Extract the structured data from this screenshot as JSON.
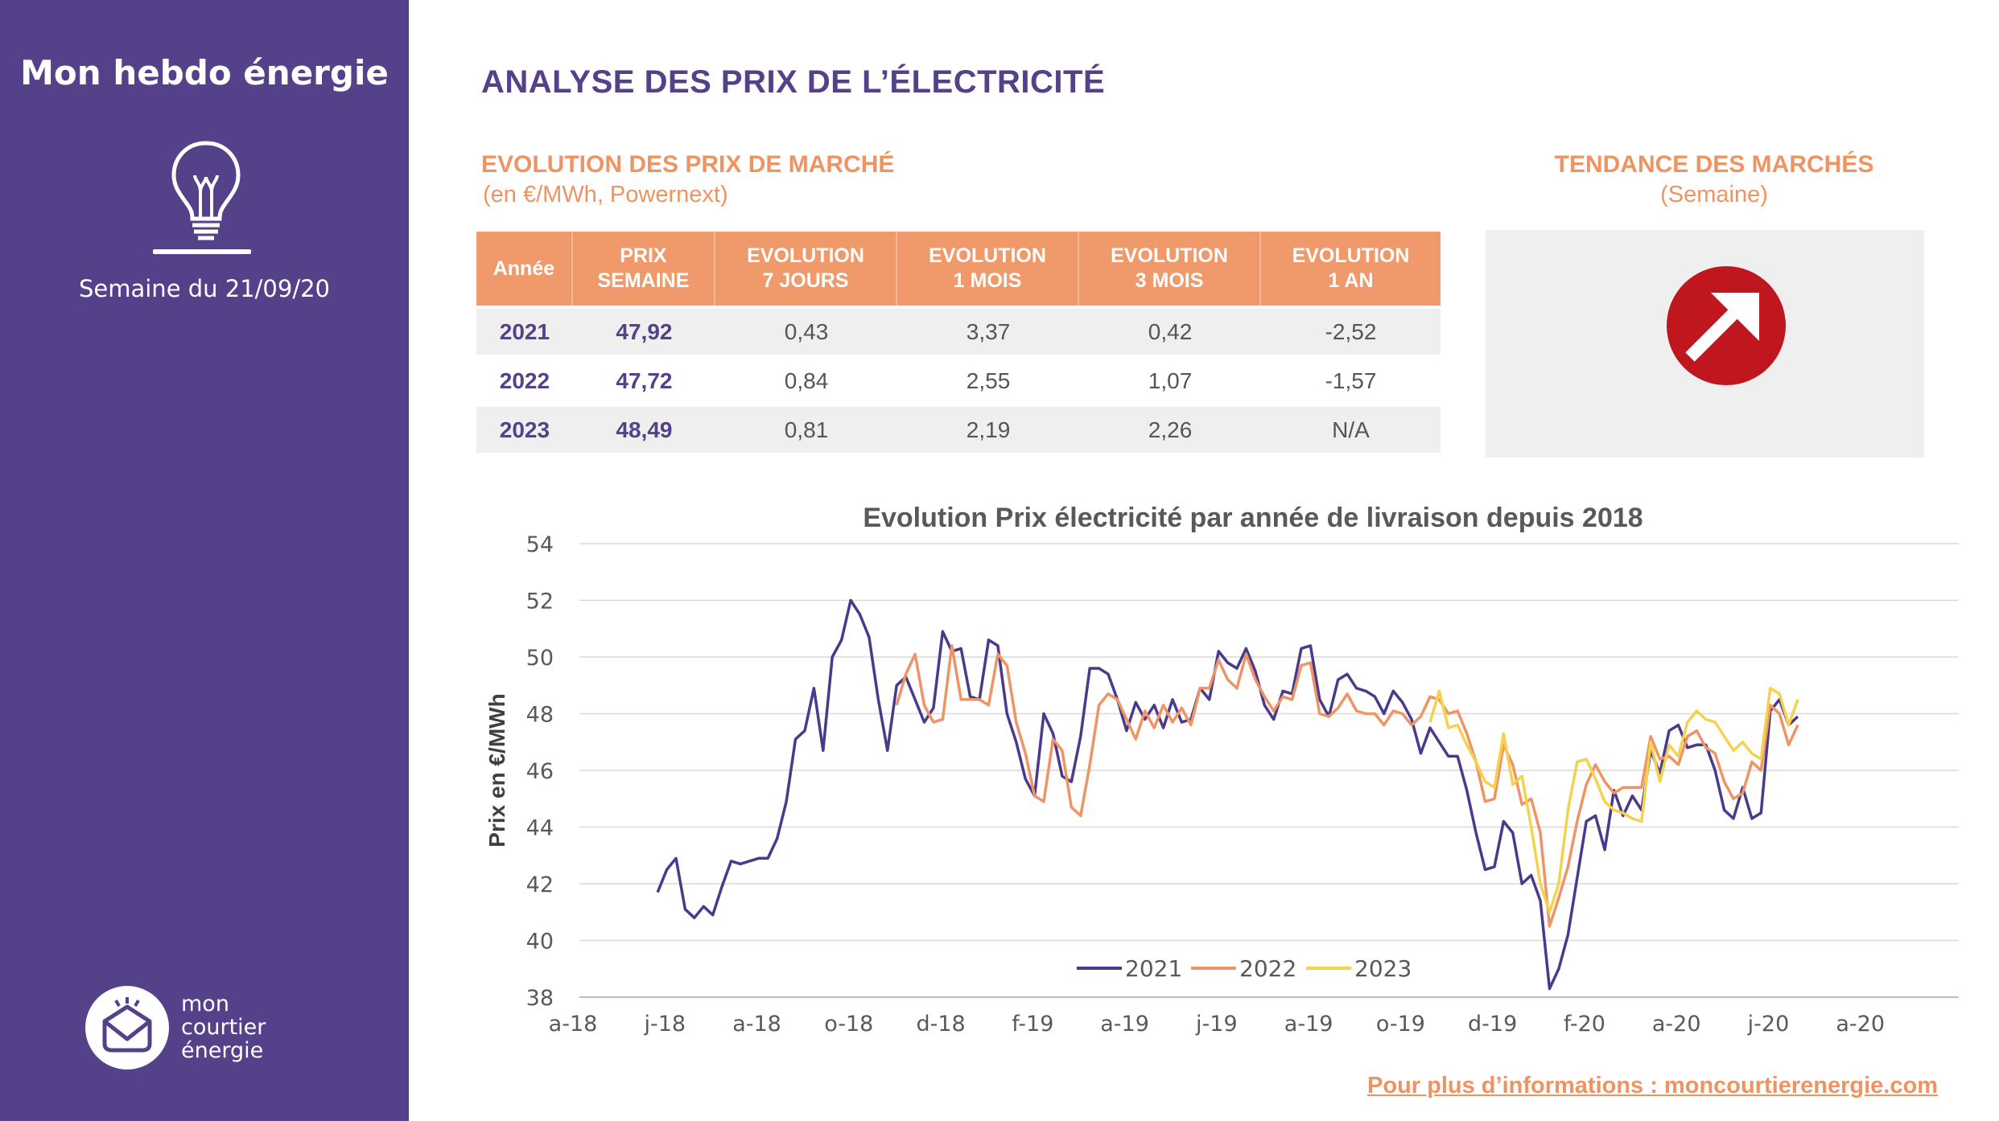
{
  "sidebar": {
    "title": "Mon hebdo énergie",
    "week": "Semaine du 21/09/20",
    "logo_lines": [
      "mon",
      "courtier",
      "énergie"
    ]
  },
  "header": {
    "title": "ANALYSE DES PRIX DE L’ÉLECTRICITÉ",
    "section_title": "EVOLUTION DES PRIX DE MARCHÉ",
    "section_unit": "(en €/MWh, Powernext)",
    "trend_title": "TENDANCE DES MARCHÉS",
    "trend_sub": "(Semaine)",
    "trend_icon": "up-right-arrow-icon"
  },
  "table": {
    "headers": [
      [
        "Année"
      ],
      [
        "PRIX",
        "SEMAINE"
      ],
      [
        "EVOLUTION",
        "7 JOURS"
      ],
      [
        "EVOLUTION",
        "1 MOIS"
      ],
      [
        "EVOLUTION",
        "3 MOIS"
      ],
      [
        "EVOLUTION",
        "1 AN"
      ]
    ],
    "rows": [
      [
        "2021",
        "47,92",
        "0,43",
        "3,37",
        "0,42",
        "-2,52"
      ],
      [
        "2022",
        "47,72",
        "0,84",
        "2,55",
        "1,07",
        "-1,57"
      ],
      [
        "2023",
        "48,49",
        "0,81",
        "2,19",
        "2,26",
        "N/A"
      ]
    ]
  },
  "footer": {
    "link": "Pour plus d’informations : moncourtierenergie.com"
  },
  "colors": {
    "sidebar": "#54418a",
    "accent": "#ee9463",
    "table_header": "#f09a6c",
    "arrow": "#c0161d",
    "series_2021": "#4b3a8c",
    "series_2022": "#ef9466",
    "series_2023": "#f5d24e"
  },
  "chart_data": {
    "type": "line",
    "title": "Evolution Prix électricité par année de livraison depuis 2018",
    "xlabel": "",
    "ylabel": "Prix en €/MWh",
    "ylim": [
      38,
      54
    ],
    "yticks": [
      38,
      40,
      42,
      44,
      46,
      48,
      50,
      52,
      54
    ],
    "xticks": [
      "a-18",
      "j-18",
      "a-18",
      "o-18",
      "d-18",
      "f-19",
      "a-19",
      "j-19",
      "a-19",
      "o-19",
      "d-19",
      "f-20",
      "a-20",
      "j-20",
      "a-20"
    ],
    "x_range_months": [
      0,
      15
    ],
    "legend": "bottom-center",
    "grid": "horizontal",
    "series": [
      {
        "name": "2021",
        "color": "#4b3a8c",
        "points": [
          [
            0.85,
            41.7
          ],
          [
            0.95,
            42.5
          ],
          [
            1.05,
            42.9
          ],
          [
            1.15,
            41.1
          ],
          [
            1.25,
            40.8
          ],
          [
            1.35,
            41.2
          ],
          [
            1.45,
            40.9
          ],
          [
            1.55,
            41.9
          ],
          [
            1.65,
            42.8
          ],
          [
            1.75,
            42.7
          ],
          [
            1.85,
            42.8
          ],
          [
            1.95,
            42.9
          ],
          [
            2.05,
            42.9
          ],
          [
            2.15,
            43.6
          ],
          [
            2.25,
            44.9
          ],
          [
            2.35,
            47.1
          ],
          [
            2.45,
            47.4
          ],
          [
            2.55,
            48.9
          ],
          [
            2.65,
            46.7
          ],
          [
            2.75,
            50.0
          ],
          [
            2.85,
            50.6
          ],
          [
            2.95,
            52.0
          ],
          [
            3.05,
            51.5
          ],
          [
            3.15,
            50.7
          ],
          [
            3.25,
            48.5
          ],
          [
            3.35,
            46.7
          ],
          [
            3.45,
            49.0
          ],
          [
            3.55,
            49.3
          ],
          [
            3.65,
            48.5
          ],
          [
            3.75,
            47.7
          ],
          [
            3.85,
            48.2
          ],
          [
            3.95,
            50.9
          ],
          [
            4.05,
            50.2
          ],
          [
            4.15,
            50.3
          ],
          [
            4.25,
            48.6
          ],
          [
            4.35,
            48.5
          ],
          [
            4.45,
            50.6
          ],
          [
            4.55,
            50.4
          ],
          [
            4.65,
            48.0
          ],
          [
            4.75,
            47.0
          ],
          [
            4.85,
            45.7
          ],
          [
            4.95,
            45.1
          ],
          [
            5.05,
            48.0
          ],
          [
            5.15,
            47.3
          ],
          [
            5.25,
            45.8
          ],
          [
            5.35,
            45.6
          ],
          [
            5.45,
            47.2
          ],
          [
            5.55,
            49.6
          ],
          [
            5.65,
            49.6
          ],
          [
            5.75,
            49.4
          ],
          [
            5.85,
            48.5
          ],
          [
            5.95,
            47.4
          ],
          [
            6.05,
            48.4
          ],
          [
            6.15,
            47.8
          ],
          [
            6.25,
            48.3
          ],
          [
            6.35,
            47.5
          ],
          [
            6.45,
            48.5
          ],
          [
            6.55,
            47.7
          ],
          [
            6.65,
            47.8
          ],
          [
            6.75,
            48.9
          ],
          [
            6.85,
            48.5
          ],
          [
            6.95,
            50.2
          ],
          [
            7.05,
            49.8
          ],
          [
            7.15,
            49.6
          ],
          [
            7.25,
            50.3
          ],
          [
            7.35,
            49.5
          ],
          [
            7.45,
            48.3
          ],
          [
            7.55,
            47.8
          ],
          [
            7.65,
            48.8
          ],
          [
            7.75,
            48.7
          ],
          [
            7.85,
            50.3
          ],
          [
            7.95,
            50.4
          ],
          [
            8.05,
            48.5
          ],
          [
            8.15,
            47.9
          ],
          [
            8.25,
            49.2
          ],
          [
            8.35,
            49.4
          ],
          [
            8.45,
            48.9
          ],
          [
            8.55,
            48.8
          ],
          [
            8.65,
            48.6
          ],
          [
            8.75,
            48.0
          ],
          [
            8.85,
            48.8
          ],
          [
            8.95,
            48.4
          ],
          [
            9.05,
            47.8
          ],
          [
            9.15,
            46.6
          ],
          [
            9.25,
            47.5
          ],
          [
            9.35,
            47.0
          ],
          [
            9.45,
            46.5
          ],
          [
            9.55,
            46.5
          ],
          [
            9.65,
            45.3
          ],
          [
            9.75,
            43.8
          ],
          [
            9.85,
            42.5
          ],
          [
            9.95,
            42.6
          ],
          [
            10.05,
            44.2
          ],
          [
            10.15,
            43.8
          ],
          [
            10.25,
            42.0
          ],
          [
            10.35,
            42.3
          ],
          [
            10.45,
            41.4
          ],
          [
            10.55,
            38.3
          ],
          [
            10.65,
            39.0
          ],
          [
            10.75,
            40.2
          ],
          [
            10.85,
            42.2
          ],
          [
            10.95,
            44.2
          ],
          [
            11.05,
            44.4
          ],
          [
            11.15,
            43.2
          ],
          [
            11.25,
            45.3
          ],
          [
            11.35,
            44.4
          ],
          [
            11.45,
            45.1
          ],
          [
            11.55,
            44.6
          ],
          [
            11.65,
            46.7
          ],
          [
            11.75,
            45.9
          ],
          [
            11.85,
            47.4
          ],
          [
            11.95,
            47.6
          ],
          [
            12.05,
            46.8
          ],
          [
            12.15,
            46.9
          ],
          [
            12.25,
            46.9
          ],
          [
            12.35,
            46.0
          ],
          [
            12.45,
            44.6
          ],
          [
            12.55,
            44.3
          ],
          [
            12.65,
            45.4
          ],
          [
            12.75,
            44.3
          ],
          [
            12.85,
            44.5
          ],
          [
            12.95,
            48.1
          ],
          [
            13.05,
            48.5
          ],
          [
            13.15,
            47.6
          ],
          [
            13.25,
            47.9
          ]
        ]
      },
      {
        "name": "2022",
        "color": "#ef9466",
        "points": [
          [
            3.45,
            48.3
          ],
          [
            3.55,
            49.4
          ],
          [
            3.65,
            50.1
          ],
          [
            3.75,
            48.3
          ],
          [
            3.85,
            47.7
          ],
          [
            3.95,
            47.8
          ],
          [
            4.05,
            50.4
          ],
          [
            4.15,
            48.5
          ],
          [
            4.25,
            48.5
          ],
          [
            4.35,
            48.5
          ],
          [
            4.45,
            48.3
          ],
          [
            4.55,
            50.1
          ],
          [
            4.65,
            49.7
          ],
          [
            4.75,
            47.7
          ],
          [
            4.85,
            46.6
          ],
          [
            4.95,
            45.1
          ],
          [
            5.05,
            44.9
          ],
          [
            5.15,
            47.1
          ],
          [
            5.25,
            46.7
          ],
          [
            5.35,
            44.7
          ],
          [
            5.45,
            44.4
          ],
          [
            5.55,
            46.2
          ],
          [
            5.65,
            48.3
          ],
          [
            5.75,
            48.7
          ],
          [
            5.85,
            48.5
          ],
          [
            5.95,
            47.8
          ],
          [
            6.05,
            47.1
          ],
          [
            6.15,
            48.1
          ],
          [
            6.25,
            47.5
          ],
          [
            6.35,
            48.3
          ],
          [
            6.45,
            47.7
          ],
          [
            6.55,
            48.2
          ],
          [
            6.65,
            47.6
          ],
          [
            6.75,
            48.9
          ],
          [
            6.85,
            48.9
          ],
          [
            6.95,
            49.9
          ],
          [
            7.05,
            49.2
          ],
          [
            7.15,
            48.9
          ],
          [
            7.25,
            50.1
          ],
          [
            7.35,
            49.2
          ],
          [
            7.45,
            48.6
          ],
          [
            7.55,
            48.1
          ],
          [
            7.65,
            48.6
          ],
          [
            7.75,
            48.5
          ],
          [
            7.85,
            49.7
          ],
          [
            7.95,
            49.8
          ],
          [
            8.05,
            48.0
          ],
          [
            8.15,
            47.9
          ],
          [
            8.25,
            48.2
          ],
          [
            8.35,
            48.7
          ],
          [
            8.45,
            48.1
          ],
          [
            8.55,
            48.0
          ],
          [
            8.65,
            48.0
          ],
          [
            8.75,
            47.6
          ],
          [
            8.85,
            48.1
          ],
          [
            8.95,
            48.0
          ],
          [
            9.05,
            47.6
          ],
          [
            9.15,
            47.9
          ],
          [
            9.25,
            48.6
          ],
          [
            9.35,
            48.5
          ],
          [
            9.45,
            48.0
          ],
          [
            9.55,
            48.1
          ],
          [
            9.65,
            47.3
          ],
          [
            9.75,
            46.3
          ],
          [
            9.85,
            44.9
          ],
          [
            9.95,
            45.0
          ],
          [
            10.05,
            46.9
          ],
          [
            10.15,
            46.2
          ],
          [
            10.25,
            44.8
          ],
          [
            10.35,
            45.0
          ],
          [
            10.45,
            43.8
          ],
          [
            10.55,
            40.5
          ],
          [
            10.65,
            41.5
          ],
          [
            10.75,
            42.6
          ],
          [
            10.85,
            44.2
          ],
          [
            10.95,
            45.5
          ],
          [
            11.05,
            46.2
          ],
          [
            11.15,
            45.6
          ],
          [
            11.25,
            45.2
          ],
          [
            11.35,
            45.4
          ],
          [
            11.45,
            45.4
          ],
          [
            11.55,
            45.4
          ],
          [
            11.65,
            47.2
          ],
          [
            11.75,
            46.4
          ],
          [
            11.85,
            46.5
          ],
          [
            11.95,
            46.2
          ],
          [
            12.05,
            47.2
          ],
          [
            12.15,
            47.4
          ],
          [
            12.25,
            46.8
          ],
          [
            12.35,
            46.6
          ],
          [
            12.45,
            45.6
          ],
          [
            12.55,
            45.0
          ],
          [
            12.65,
            45.2
          ],
          [
            12.75,
            46.3
          ],
          [
            12.85,
            46.0
          ],
          [
            12.95,
            48.3
          ],
          [
            13.05,
            48.0
          ],
          [
            13.15,
            46.9
          ],
          [
            13.25,
            47.6
          ]
        ]
      },
      {
        "name": "2023",
        "color": "#f5d24e",
        "points": [
          [
            9.25,
            47.7
          ],
          [
            9.35,
            48.8
          ],
          [
            9.45,
            47.5
          ],
          [
            9.55,
            47.6
          ],
          [
            9.65,
            46.9
          ],
          [
            9.75,
            46.3
          ],
          [
            9.85,
            45.6
          ],
          [
            9.95,
            45.4
          ],
          [
            10.05,
            47.3
          ],
          [
            10.15,
            45.5
          ],
          [
            10.25,
            45.8
          ],
          [
            10.35,
            44.0
          ],
          [
            10.45,
            42.0
          ],
          [
            10.55,
            41.0
          ],
          [
            10.65,
            42.0
          ],
          [
            10.75,
            44.6
          ],
          [
            10.85,
            46.3
          ],
          [
            10.95,
            46.4
          ],
          [
            11.05,
            45.7
          ],
          [
            11.15,
            44.9
          ],
          [
            11.25,
            44.6
          ],
          [
            11.35,
            44.5
          ],
          [
            11.45,
            44.3
          ],
          [
            11.55,
            44.2
          ],
          [
            11.65,
            47.0
          ],
          [
            11.75,
            45.6
          ],
          [
            11.85,
            46.9
          ],
          [
            11.95,
            46.5
          ],
          [
            12.05,
            47.7
          ],
          [
            12.15,
            48.1
          ],
          [
            12.25,
            47.8
          ],
          [
            12.35,
            47.7
          ],
          [
            12.45,
            47.2
          ],
          [
            12.55,
            46.7
          ],
          [
            12.65,
            47.0
          ],
          [
            12.75,
            46.6
          ],
          [
            12.85,
            46.4
          ],
          [
            12.95,
            48.9
          ],
          [
            13.05,
            48.7
          ],
          [
            13.15,
            47.6
          ],
          [
            13.25,
            48.5
          ]
        ]
      }
    ]
  }
}
